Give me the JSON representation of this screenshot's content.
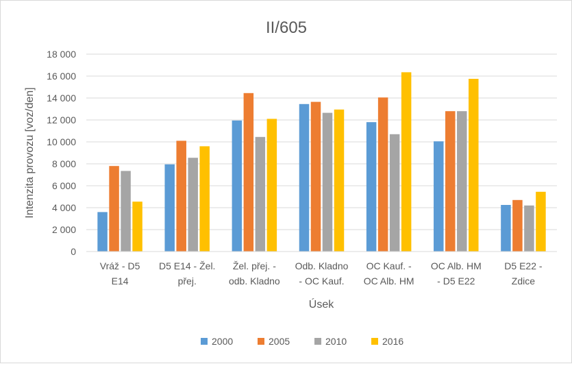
{
  "chart_data": {
    "type": "bar",
    "title": "II/605",
    "xlabel": "Úsek",
    "ylabel": "Intenzita provozu [voz/den]",
    "ylim": [
      0,
      18000
    ],
    "ytick_values": [
      0,
      2000,
      4000,
      6000,
      8000,
      10000,
      12000,
      14000,
      16000,
      18000
    ],
    "ytick_labels": [
      "0",
      "2 000",
      "4 000",
      "6 000",
      "8 000",
      "10 000",
      "12 000",
      "14 000",
      "16 000",
      "18 000"
    ],
    "grid": true,
    "legend_position": "bottom",
    "categories": [
      [
        "Vráž - D5",
        "E14"
      ],
      [
        "D5 E14 - Žel.",
        "přej."
      ],
      [
        "Žel. přej. -",
        "odb. Kladno"
      ],
      [
        "Odb. Kladno",
        "- OC Kauf."
      ],
      [
        "OC Kauf. -",
        "OC Alb. HM"
      ],
      [
        "OC Alb. HM",
        "- D5 E22"
      ],
      [
        "D5 E22 -",
        "Zdice"
      ]
    ],
    "series": [
      {
        "name": "2000",
        "color": "#5b9bd5",
        "values": [
          3600,
          7950,
          11950,
          13450,
          11800,
          10050,
          4250
        ]
      },
      {
        "name": "2005",
        "color": "#ed7d31",
        "values": [
          7800,
          10100,
          14450,
          13650,
          14050,
          12800,
          4700
        ]
      },
      {
        "name": "2010",
        "color": "#a5a5a5",
        "values": [
          7350,
          8550,
          10450,
          12650,
          10700,
          12800,
          4200
        ]
      },
      {
        "name": "2016",
        "color": "#ffc000",
        "values": [
          4550,
          9600,
          12100,
          12950,
          16350,
          15750,
          5450
        ]
      }
    ]
  }
}
